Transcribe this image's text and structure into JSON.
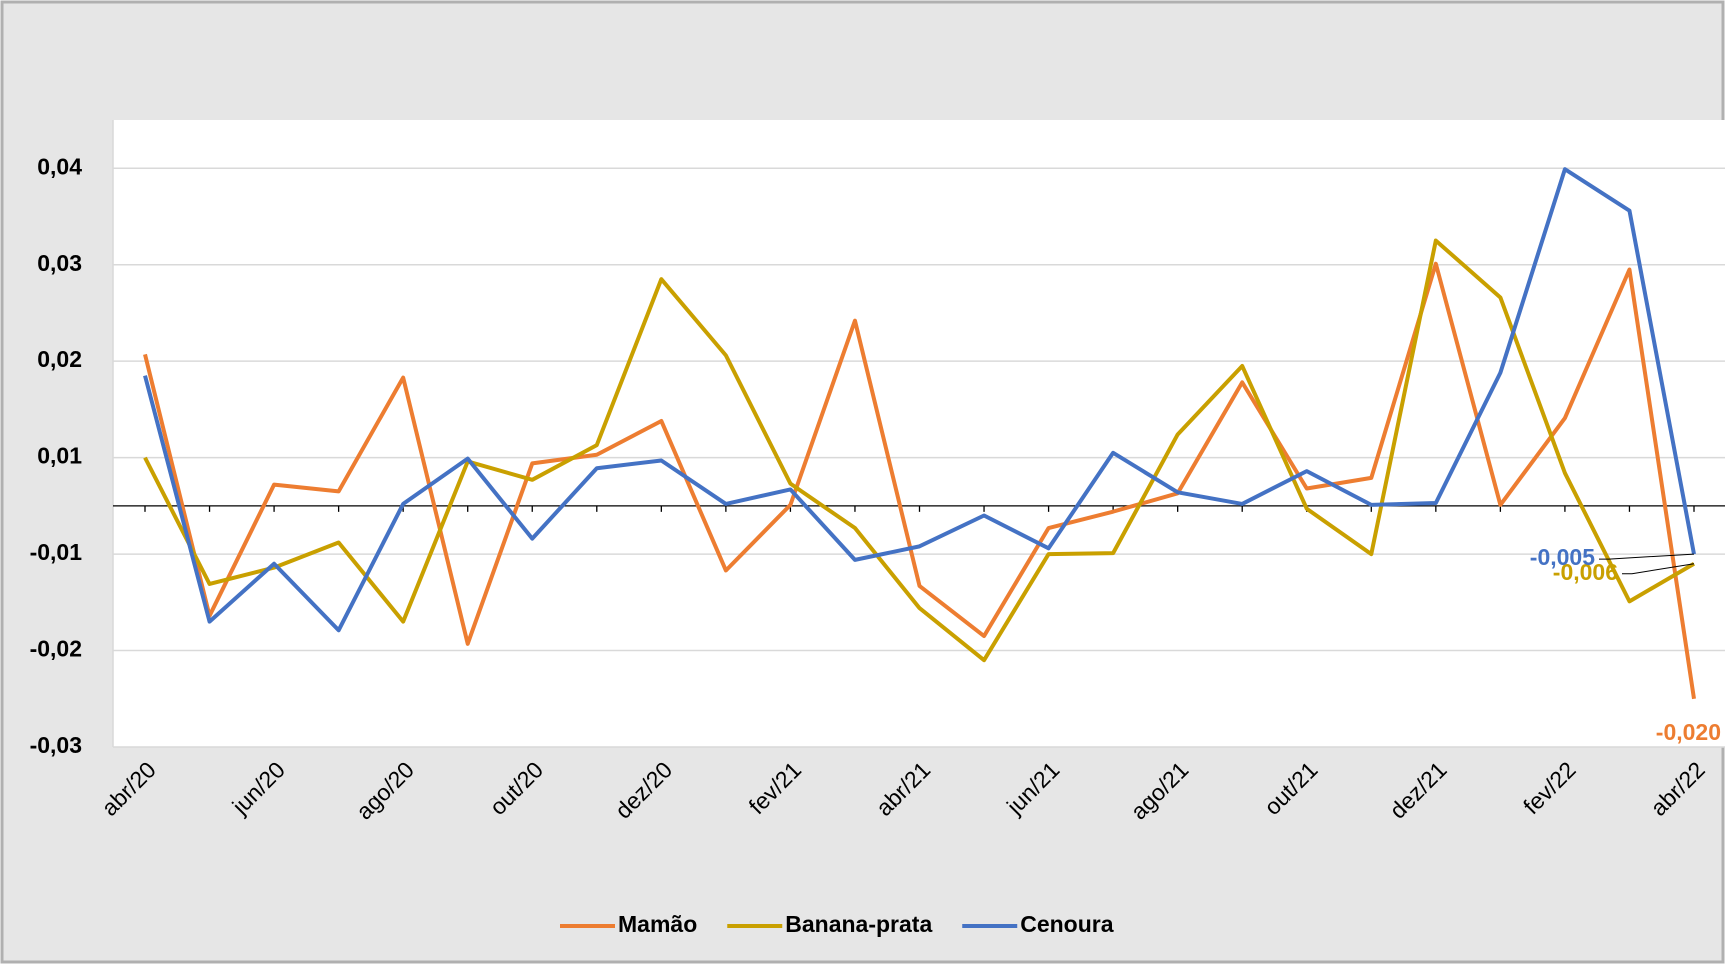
{
  "chart_data": {
    "type": "line",
    "categories": [
      "abr/20",
      null,
      "jun/20",
      null,
      "ago/20",
      null,
      "out/20",
      null,
      "dez/20",
      null,
      "fev/21",
      null,
      "abr/21",
      null,
      "jun/21",
      null,
      "ago/21",
      null,
      "out/21",
      null,
      "dez/21",
      null,
      "fev/22",
      null,
      "abr/22"
    ],
    "series": [
      {
        "name": "Mamão",
        "color": "#ed7d31",
        "values": [
          0.0157,
          -0.0114,
          0.0022,
          0.0015,
          0.0133,
          -0.0143,
          0.0044,
          0.0053,
          0.0088,
          -0.0067,
          0.0001,
          0.0192,
          -0.0083,
          -0.0135,
          -0.0023,
          -0.0006,
          0.0013,
          0.0128,
          0.0018,
          0.0029,
          0.0251,
          0.0001,
          0.0091,
          0.0245,
          -0.02
        ],
        "value_labels": [
          null,
          null,
          null,
          null,
          null,
          null,
          null,
          null,
          null,
          null,
          null,
          null,
          null,
          null,
          null,
          null,
          null,
          null,
          null,
          null,
          null,
          null,
          null,
          null,
          "-0,020"
        ]
      },
      {
        "name": "Banana-prata",
        "color": "#c9a000",
        "values": [
          0.005,
          -0.0081,
          -0.0064,
          -0.0038,
          -0.012,
          0.0046,
          0.0027,
          0.0063,
          0.0235,
          0.0156,
          0.0023,
          -0.0023,
          -0.0106,
          -0.016,
          -0.005,
          -0.0049,
          0.0074,
          0.0145,
          -0.0003,
          -0.005,
          0.0275,
          0.0216,
          0.0034,
          -0.0099,
          -0.006
        ],
        "value_labels": [
          null,
          null,
          null,
          null,
          null,
          null,
          null,
          null,
          null,
          null,
          null,
          null,
          null,
          null,
          null,
          null,
          null,
          null,
          null,
          null,
          null,
          null,
          null,
          null,
          "-0,006"
        ]
      },
      {
        "name": "Cenoura",
        "color": "#4472c4",
        "values": [
          0.0135,
          -0.012,
          -0.006,
          -0.0129,
          0.0002,
          0.0049,
          -0.0034,
          0.0039,
          0.0047,
          0.0002,
          0.0017,
          -0.0056,
          -0.0042,
          -0.001,
          -0.0044,
          0.0055,
          0.0014,
          0.0002,
          0.0036,
          0.0001,
          0.0003,
          0.0138,
          0.0349,
          0.0306,
          -0.005
        ],
        "value_labels": [
          null,
          null,
          null,
          null,
          null,
          null,
          null,
          null,
          null,
          null,
          null,
          null,
          null,
          null,
          null,
          null,
          null,
          null,
          null,
          null,
          null,
          null,
          null,
          null,
          "-0,005"
        ]
      }
    ],
    "ylim": [
      -0.025,
      0.04
    ],
    "yticks": [
      {
        "value": -0.025,
        "label": "-0,03"
      },
      {
        "value": -0.015,
        "label": "-0,02"
      },
      {
        "value": -0.005,
        "label": "-0,01"
      },
      {
        "value": 0.005,
        "label": "0,01"
      },
      {
        "value": 0.015,
        "label": "0,02"
      },
      {
        "value": 0.025,
        "label": "0,03"
      },
      {
        "value": 0.035,
        "label": "0,04"
      }
    ],
    "grid": true,
    "legend": "bottom"
  }
}
